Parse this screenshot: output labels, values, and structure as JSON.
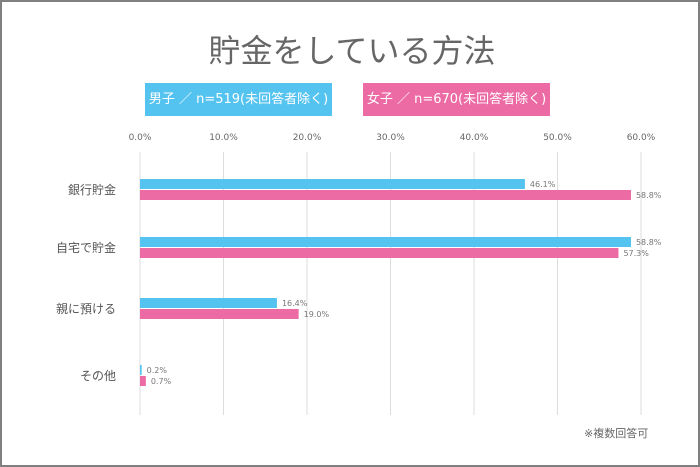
{
  "chart_data": {
    "type": "bar",
    "orientation": "horizontal",
    "title": "貯金をしている方法",
    "categories": [
      "銀行貯金",
      "自宅で貯金",
      "親に預ける",
      "その他"
    ],
    "series": [
      {
        "name": "男子 ／ n=519(未回答者除く)",
        "color": "#55C3F0",
        "values": [
          46.1,
          58.8,
          16.4,
          0.2
        ]
      },
      {
        "name": "女子 ／ n=670(未回答者除く)",
        "color": "#EC6BA4",
        "values": [
          58.8,
          57.3,
          19.0,
          0.7
        ]
      }
    ],
    "xlim": [
      0,
      60
    ],
    "xticks": [
      "0.0%",
      "10.0%",
      "20.0%",
      "30.0%",
      "40.0%",
      "50.0%",
      "60.0%"
    ],
    "grid": true,
    "legend_placement": "top",
    "note": "※複数回答可"
  }
}
